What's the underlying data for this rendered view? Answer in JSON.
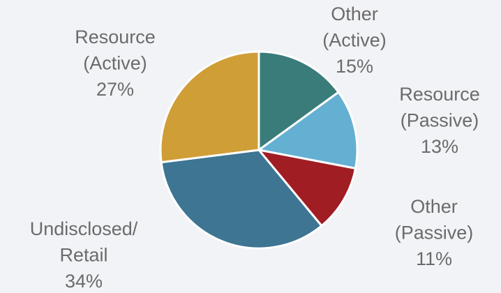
{
  "chart_data": {
    "type": "pie",
    "categories": [
      [
        "Other",
        "(Active)"
      ],
      [
        "Resource",
        "(Passive)"
      ],
      [
        "Other",
        "(Passive)"
      ],
      [
        "Undisclosed/",
        "Retail"
      ],
      [
        "Resource",
        "(Active)"
      ]
    ],
    "values": [
      15,
      13,
      11,
      34,
      27
    ],
    "value_labels": [
      "15%",
      "13%",
      "11%",
      "34%",
      "27%"
    ],
    "colors": [
      "#3a7c79",
      "#64b0d2",
      "#a11d24",
      "#3d7592",
      "#d09e37"
    ]
  }
}
